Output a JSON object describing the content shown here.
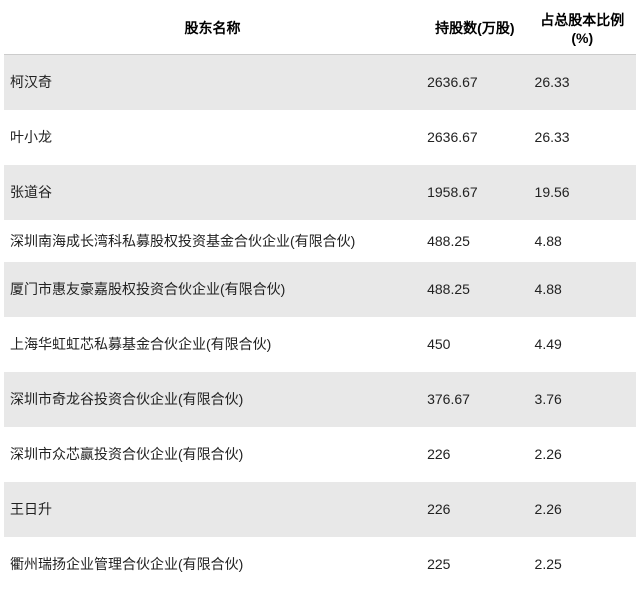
{
  "table": {
    "columns": [
      {
        "label": "股东名称"
      },
      {
        "label": "持股数(万股)"
      },
      {
        "label": "占总股本比例(%)"
      }
    ],
    "rows": [
      {
        "name": "柯汉奇",
        "shares": "2636.67",
        "pct": "26.33",
        "tall": true
      },
      {
        "name": "叶小龙",
        "shares": "2636.67",
        "pct": "26.33",
        "tall": true
      },
      {
        "name": "张道谷",
        "shares": "1958.67",
        "pct": "19.56",
        "tall": true
      },
      {
        "name": "深圳南海成长湾科私募股权投资基金合伙企业(有限合伙)",
        "shares": "488.25",
        "pct": "4.88",
        "tall": false
      },
      {
        "name": "厦门市惠友豪嘉股权投资合伙企业(有限合伙)",
        "shares": "488.25",
        "pct": "4.88",
        "tall": true
      },
      {
        "name": "上海华虹虹芯私募基金合伙企业(有限合伙)",
        "shares": "450",
        "pct": "4.49",
        "tall": true
      },
      {
        "name": "深圳市奇龙谷投资合伙企业(有限合伙)",
        "shares": "376.67",
        "pct": "3.76",
        "tall": true
      },
      {
        "name": "深圳市众芯赢投资合伙企业(有限合伙)",
        "shares": "226",
        "pct": "2.26",
        "tall": true
      },
      {
        "name": "王日升",
        "shares": "226",
        "pct": "2.26",
        "tall": true
      },
      {
        "name": "衢州瑞扬企业管理合伙企业(有限合伙)",
        "shares": "225",
        "pct": "2.25",
        "tall": true
      }
    ],
    "header_bg": "#ffffff",
    "row_odd_bg": "#e8e8e8",
    "row_even_bg": "#ffffff",
    "font_size": 14,
    "text_color": "#222222"
  }
}
